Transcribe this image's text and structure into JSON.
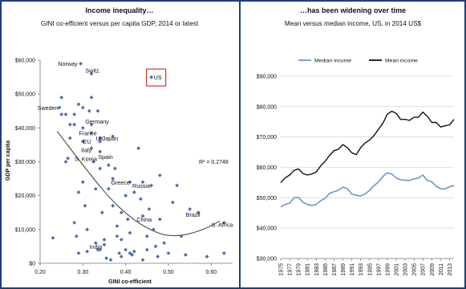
{
  "colors": {
    "frame": "#1f3f77",
    "point": "#4a6fad",
    "trend": "#4a4a4a",
    "median_line": "#6f96cc",
    "mean_line": "#111111",
    "highlight_box": "#d9302b",
    "grid": "#d9d9d9"
  },
  "chart_data": [
    {
      "type": "scatter",
      "title": "Income inequality…",
      "subtitle": "GINI co-efficient versus per capita GDP, 2014 or latest",
      "xlabel": "GINI co-efficient",
      "ylabel": "GDP per capita",
      "xlim": [
        0.2,
        0.65
      ],
      "ylim": [
        0,
        60000
      ],
      "x_ticks": [
        "0.20",
        "0.30",
        "0.40",
        "0.50",
        "0.60"
      ],
      "y_ticks": [
        "$0",
        "$10,000",
        "$20,000",
        "$30,000",
        "$40,000",
        "$50,000",
        "$60,000"
      ],
      "grid": false,
      "annotation": "R² = 0.2748",
      "highlight": "US",
      "trendline": {
        "type": "polynomial-2",
        "r2": 0.2748,
        "points": [
          [
            0.24,
            39000
          ],
          [
            0.3,
            29000
          ],
          [
            0.36,
            19500
          ],
          [
            0.42,
            12500
          ],
          [
            0.48,
            8500
          ],
          [
            0.52,
            8000
          ],
          [
            0.56,
            9000
          ],
          [
            0.6,
            11000
          ],
          [
            0.62,
            12500
          ]
        ]
      },
      "series": [
        {
          "values": [
            [
              0.23,
              7500
            ],
            [
              0.245,
              46000
            ],
            [
              0.25,
              44000
            ],
            [
              0.25,
              49000
            ],
            [
              0.26,
              44000
            ],
            [
              0.26,
              30000
            ],
            [
              0.265,
              31000
            ],
            [
              0.27,
              41000
            ],
            [
              0.27,
              37000
            ],
            [
              0.28,
              44000
            ],
            [
              0.28,
              41000
            ],
            [
              0.28,
              12000
            ],
            [
              0.285,
              8000
            ],
            [
              0.29,
              3000
            ],
            [
              0.29,
              21000
            ],
            [
              0.29,
              47000
            ],
            [
              0.295,
              59000
            ],
            [
              0.3,
              46000
            ],
            [
              0.3,
              40000
            ],
            [
              0.3,
              36000
            ],
            [
              0.3,
              24000
            ],
            [
              0.305,
              17000
            ],
            [
              0.31,
              10000
            ],
            [
              0.31,
              3500
            ],
            [
              0.315,
              45000
            ],
            [
              0.32,
              56000
            ],
            [
              0.32,
              49000
            ],
            [
              0.32,
              41000
            ],
            [
              0.32,
              38500
            ],
            [
              0.32,
              34000
            ],
            [
              0.325,
              30000
            ],
            [
              0.33,
              22000
            ],
            [
              0.33,
              6000
            ],
            [
              0.335,
              45000
            ],
            [
              0.335,
              4000
            ],
            [
              0.34,
              37000
            ],
            [
              0.34,
              36000
            ],
            [
              0.34,
              33000
            ],
            [
              0.34,
              28000
            ],
            [
              0.34,
              4000
            ],
            [
              0.345,
              15000
            ],
            [
              0.35,
              7000
            ],
            [
              0.35,
              5500
            ],
            [
              0.355,
              1500
            ],
            [
              0.36,
              29000
            ],
            [
              0.36,
              22000
            ],
            [
              0.365,
              1000
            ],
            [
              0.37,
              25000
            ],
            [
              0.37,
              17000
            ],
            [
              0.37,
              37500
            ],
            [
              0.375,
              28000
            ],
            [
              0.38,
              11000
            ],
            [
              0.38,
              8000
            ],
            [
              0.385,
              3000
            ],
            [
              0.39,
              15000
            ],
            [
              0.39,
              7000
            ],
            [
              0.39,
              2000
            ],
            [
              0.4,
              20000
            ],
            [
              0.4,
              4000
            ],
            [
              0.405,
              13000
            ],
            [
              0.41,
              24000
            ],
            [
              0.41,
              9000
            ],
            [
              0.41,
              3000
            ],
            [
              0.415,
              2500
            ],
            [
              0.42,
              3500
            ],
            [
              0.42,
              21000
            ],
            [
              0.43,
              34000
            ],
            [
              0.435,
              19000
            ],
            [
              0.44,
              24000
            ],
            [
              0.44,
              14000
            ],
            [
              0.44,
              1000
            ],
            [
              0.45,
              8000
            ],
            [
              0.45,
              4000
            ],
            [
              0.455,
              16000
            ],
            [
              0.46,
              55000
            ],
            [
              0.46,
              23000
            ],
            [
              0.465,
              10000
            ],
            [
              0.47,
              5000
            ],
            [
              0.475,
              2000
            ],
            [
              0.48,
              13000
            ],
            [
              0.48,
              26000
            ],
            [
              0.49,
              6000
            ],
            [
              0.5,
              3000
            ],
            [
              0.51,
              18000
            ],
            [
              0.52,
              23000
            ],
            [
              0.53,
              8000
            ],
            [
              0.54,
              2500
            ],
            [
              0.55,
              16000
            ],
            [
              0.57,
              15000
            ],
            [
              0.59,
              2000
            ],
            [
              0.63,
              12000
            ],
            [
              0.63,
              3000
            ]
          ]
        }
      ],
      "point_labels": [
        {
          "text": "Norway",
          "at": [
            0.295,
            59000
          ],
          "pos": "left"
        },
        {
          "text": "Switz.",
          "at": [
            0.3,
            57000
          ],
          "pos": "right"
        },
        {
          "text": "US",
          "at": [
            0.46,
            55000
          ],
          "pos": "right"
        },
        {
          "text": "Sweden",
          "at": [
            0.25,
            46000
          ],
          "pos": "left"
        },
        {
          "text": "Germany",
          "at": [
            0.3,
            42000
          ],
          "pos": "right"
        },
        {
          "text": "France",
          "at": [
            0.285,
            38500
          ],
          "pos": "right"
        },
        {
          "text": "EU",
          "at": [
            0.295,
            36000
          ],
          "pos": "right"
        },
        {
          "text": "UK",
          "at": [
            0.325,
            37000
          ],
          "pos": "right"
        },
        {
          "text": "Japan",
          "at": [
            0.34,
            37000
          ],
          "pos": "right"
        },
        {
          "text": "Italy",
          "at": [
            0.29,
            33500
          ],
          "pos": "right"
        },
        {
          "text": "S. Korea",
          "at": [
            0.275,
            31000
          ],
          "pos": "right"
        },
        {
          "text": "Spain",
          "at": [
            0.33,
            31500
          ],
          "pos": "right"
        },
        {
          "text": "Greece",
          "at": [
            0.36,
            24000
          ],
          "pos": "right"
        },
        {
          "text": "Russia",
          "at": [
            0.41,
            23000
          ],
          "pos": "right"
        },
        {
          "text": "China",
          "at": [
            0.42,
            13000
          ],
          "pos": "right"
        },
        {
          "text": "Brazil",
          "at": [
            0.535,
            14500
          ],
          "pos": "right"
        },
        {
          "text": "S. Africa",
          "at": [
            0.595,
            11500
          ],
          "pos": "right"
        },
        {
          "text": "India",
          "at": [
            0.31,
            5000
          ],
          "pos": "right"
        }
      ]
    },
    {
      "type": "line",
      "title": "…has been widening over time",
      "subtitle": "Mean versus median income, US, in 2014 US$",
      "xlabel": "",
      "ylabel": "",
      "ylim": [
        30000,
        90000
      ],
      "y_ticks": [
        "$30,000",
        "$40,000",
        "$50,000",
        "$60,000",
        "$70,000",
        "$80,000",
        "$90,000"
      ],
      "x_tick_labels": [
        "1975",
        "1977",
        "1979",
        "1981",
        "1983",
        "1985",
        "1987",
        "1989",
        "1991",
        "1993",
        "1995",
        "1997",
        "1999",
        "2001",
        "2003",
        "2005",
        "2007",
        "2009",
        "2011",
        "2013"
      ],
      "grid": true,
      "legend_position": "top",
      "x": [
        1975,
        1976,
        1977,
        1978,
        1979,
        1980,
        1981,
        1982,
        1983,
        1984,
        1985,
        1986,
        1987,
        1988,
        1989,
        1990,
        1991,
        1992,
        1993,
        1994,
        1995,
        1996,
        1997,
        1998,
        1999,
        2000,
        2001,
        2002,
        2003,
        2004,
        2005,
        2006,
        2007,
        2008,
        2009,
        2010,
        2011,
        2012,
        2013,
        2014
      ],
      "series": [
        {
          "name": "Median income",
          "values": [
            47000,
            47800,
            48200,
            50000,
            50100,
            48500,
            47800,
            47500,
            47800,
            49000,
            49800,
            51500,
            52000,
            52500,
            53500,
            53000,
            51200,
            50800,
            50600,
            51200,
            52500,
            54000,
            55200,
            57000,
            58200,
            57800,
            56500,
            55900,
            55800,
            55700,
            56200,
            56500,
            57500,
            55700,
            55300,
            53800,
            53000,
            52900,
            53600,
            54000
          ]
        },
        {
          "name": "Mean income",
          "values": [
            55000,
            56500,
            57500,
            59000,
            59500,
            58000,
            57500,
            57800,
            58500,
            60500,
            62000,
            64000,
            65500,
            66000,
            67500,
            66500,
            64800,
            64200,
            66500,
            68000,
            69000,
            70500,
            72500,
            74500,
            77500,
            78500,
            77800,
            75800,
            75800,
            75500,
            76500,
            76500,
            78200,
            76800,
            74800,
            74800,
            73300,
            73700,
            74000,
            75800
          ]
        }
      ]
    }
  ]
}
